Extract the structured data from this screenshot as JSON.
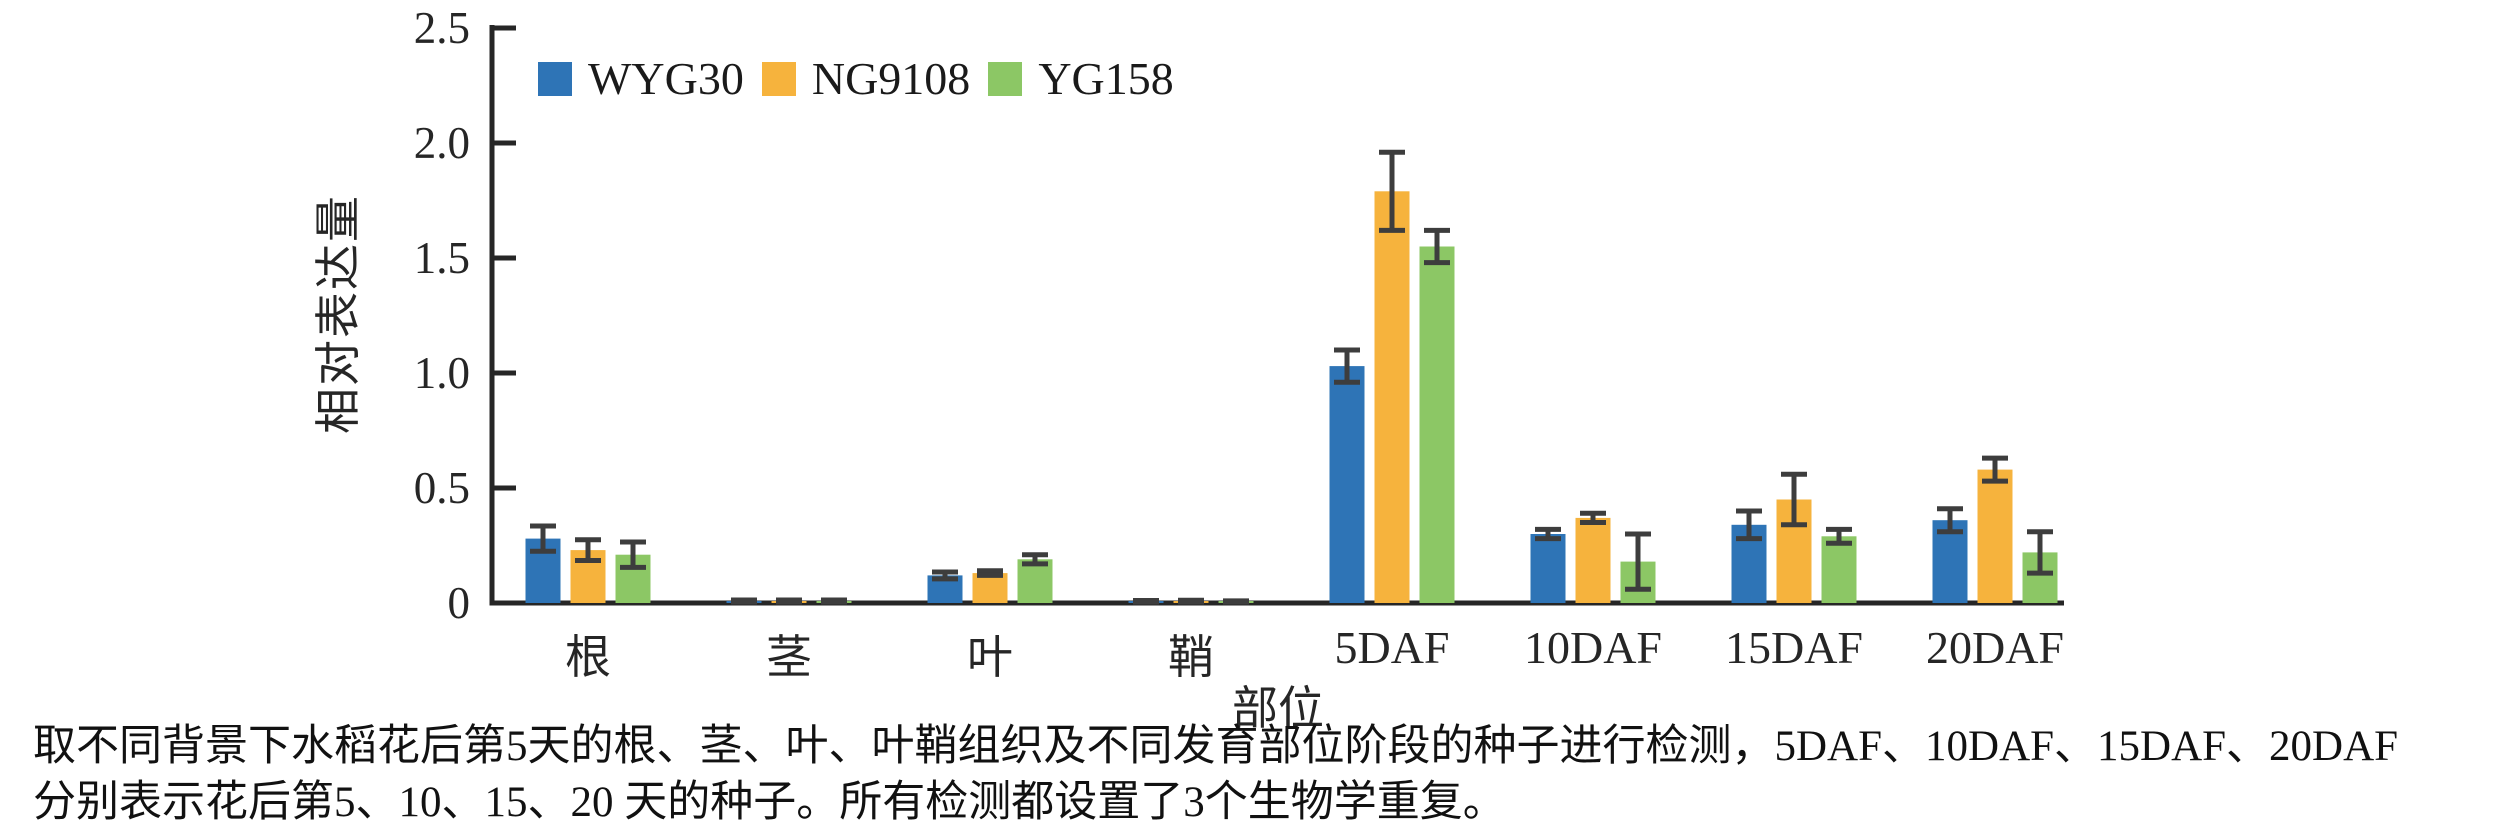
{
  "chart_data": {
    "type": "bar",
    "categories": [
      "根",
      "茎",
      "叶",
      "鞘",
      "5DAF",
      "10DAF",
      "15DAF",
      "20DAF"
    ],
    "series": [
      {
        "name": "WYG30",
        "color": "#2E74B6",
        "values": [
          0.28,
          0.005,
          0.12,
          0.005,
          1.03,
          0.3,
          0.34,
          0.36
        ],
        "errors": [
          0.055,
          0.008,
          0.015,
          0.006,
          0.07,
          0.02,
          0.06,
          0.05
        ]
      },
      {
        "name": "NG9108",
        "color": "#F6B33D",
        "values": [
          0.23,
          0.005,
          0.13,
          0.006,
          1.79,
          0.37,
          0.45,
          0.58
        ],
        "errors": [
          0.045,
          0.008,
          0.01,
          0.006,
          0.17,
          0.02,
          0.11,
          0.05
        ]
      },
      {
        "name": "YG158",
        "color": "#8CC765",
        "values": [
          0.21,
          0.005,
          0.19,
          0.004,
          1.55,
          0.18,
          0.29,
          0.22
        ],
        "errors": [
          0.055,
          0.008,
          0.02,
          0.005,
          0.07,
          0.12,
          0.03,
          0.09
        ]
      }
    ],
    "title": "",
    "xlabel": "部位",
    "ylabel": "相对表达量",
    "ylim": [
      0,
      2.5
    ],
    "yticks": [
      0,
      0.5,
      1.0,
      1.5,
      2.0,
      2.5
    ],
    "ytick_labels": [
      "0",
      "0.5",
      "1.0",
      "1.5",
      "2.0",
      "2.5"
    ],
    "grid": false,
    "legend_position": "top-left-inside",
    "error_bars": true,
    "axis_color": "#262626",
    "error_bar_color": "#3d3d3d"
  },
  "caption": {
    "line1": "取不同背景下水稻花后第5天的根、茎、叶、叶鞘组织及不同发育部位阶段的种子进行检测，5DAF、10DAF、15DAF、20DAF",
    "line2": "分别表示花后第5、10、15、20 天的种子。所有检测都设置了3个生物学重复。"
  }
}
